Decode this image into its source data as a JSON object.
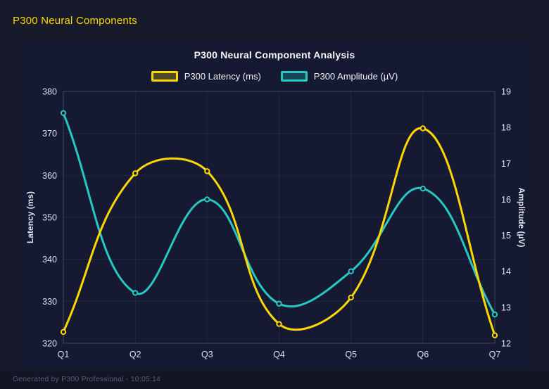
{
  "header": {
    "title": "P300 Neural Components"
  },
  "colors": {
    "accent": "#ffd700",
    "latency_line": "#ffd700",
    "amplitude_line": "#26c8c4",
    "panel_background": "#151931",
    "page_background": "#171a2b"
  },
  "chart_data": {
    "type": "line",
    "title": "P300 Neural Component Analysis",
    "categories": [
      "Q1",
      "Q2",
      "Q3",
      "Q4",
      "Q5",
      "Q6",
      "Q7"
    ],
    "series": [
      {
        "name": "P300 Latency (ms)",
        "axis": "left",
        "color": "#ffd700",
        "values": [
          322.7,
          360.5,
          361.0,
          324.6,
          330.9,
          371.2,
          321.9
        ]
      },
      {
        "name": "P300 Amplitude (µV)",
        "axis": "right",
        "color": "#26c8c4",
        "values": [
          18.4,
          13.4,
          16.0,
          13.1,
          14.0,
          16.3,
          12.8
        ]
      }
    ],
    "left_axis": {
      "label": "Latency (ms)",
      "min": 320,
      "max": 380,
      "step": 10
    },
    "right_axis": {
      "label": "Amplitude (µV)",
      "min": 12,
      "max": 19,
      "step": 1
    },
    "grid": true,
    "legend_position": "top",
    "curve_tension": 0.4
  },
  "footer": {
    "status": "Generated by P300 Professional - 10:05:14"
  }
}
